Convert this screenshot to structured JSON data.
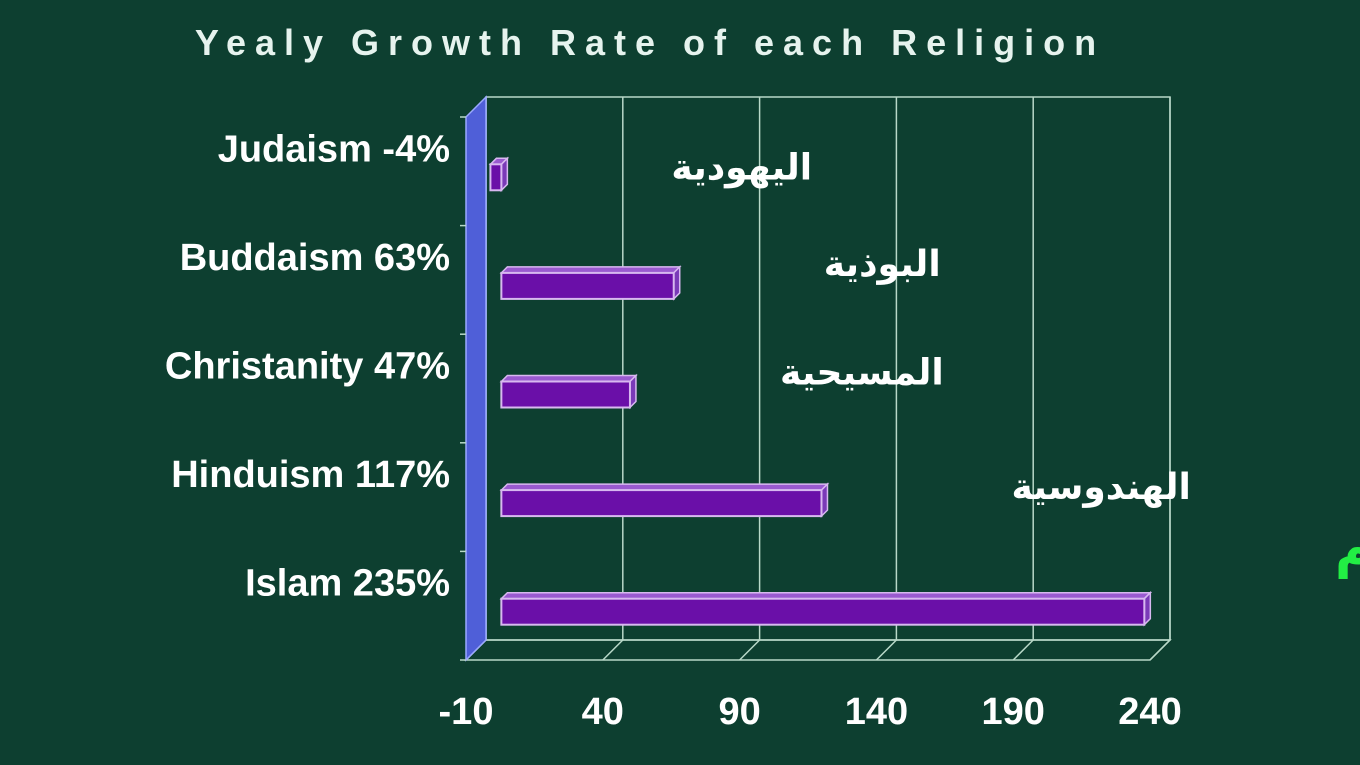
{
  "chart_data": {
    "type": "bar",
    "orientation": "horizontal",
    "title": "Yealy Growth Rate of each Religion",
    "categories": [
      "Judaism -4%",
      "Buddaism 63%",
      "Christanity 47%",
      "Hinduism 117%",
      "Islam 235%"
    ],
    "arabic_labels": [
      "اليهودية",
      "البوذية",
      "المسيحية",
      "الهندوسية",
      "الإسلام"
    ],
    "values": [
      -4,
      63,
      47,
      117,
      235
    ],
    "xlim": [
      -10,
      240
    ],
    "xticks": [
      "-10",
      "40",
      "90",
      "140",
      "190",
      "240"
    ],
    "grid": true,
    "colors": {
      "background": "#0d3f30",
      "bar": "#6a0fa8",
      "bar_edge": "#d8b8f0",
      "axis_wall": "#4f5fd8",
      "grid": "#b8d8c8",
      "highlight_label": "#22ee44"
    }
  }
}
